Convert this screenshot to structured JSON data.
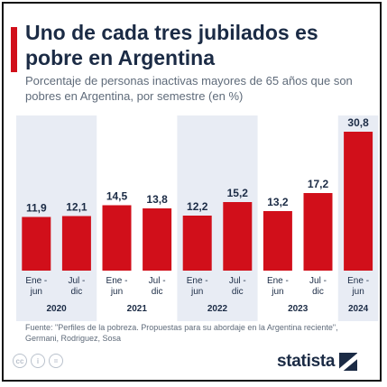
{
  "title": "Uno de cada tres jubilados es pobre en Argentina",
  "subtitle": "Porcentaje de personas inactivas mayores de 65 años que son pobres en Argentina, por semestre (en %)",
  "source": "Fuente: \"Perfiles de la pobreza. Propuestas para su abordaje en la Argentina reciente\", Germani, Rodriguez, Sosa",
  "brand": "statista",
  "icons": [
    "cc-icon",
    "person-icon",
    "equals-icon"
  ],
  "colors": {
    "bar": "#d10f1a",
    "year_band": "#e8ecf4",
    "title": "#1b2b45"
  },
  "chart_data": {
    "type": "bar",
    "categories": [
      "Ene-jun 2020",
      "Jul-dic 2020",
      "Ene-jun 2021",
      "Jul-dic 2021",
      "Ene-jun 2022",
      "Jul-dic 2022",
      "Ene-jun 2023",
      "Jul-dic 2023",
      "Ene-jun 2024"
    ],
    "semester_labels": [
      [
        "Ene -",
        "jun"
      ],
      [
        "Jul -",
        "dic"
      ],
      [
        "Ene -",
        "jun"
      ],
      [
        "Jul -",
        "dic"
      ],
      [
        "Ene -",
        "jun"
      ],
      [
        "Jul -",
        "dic"
      ],
      [
        "Ene -",
        "jun"
      ],
      [
        "Jul -",
        "dic"
      ],
      [
        "Ene -",
        "jun"
      ]
    ],
    "value_labels": [
      "11,9",
      "12,1",
      "14,5",
      "13,8",
      "12,2",
      "15,2",
      "13,2",
      "17,2",
      "30,8"
    ],
    "values": [
      11.9,
      12.1,
      14.5,
      13.8,
      12.2,
      15.2,
      13.2,
      17.2,
      30.8
    ],
    "years": [
      "2020",
      "2021",
      "2022",
      "2023",
      "2024"
    ],
    "ylim": [
      0,
      32
    ]
  }
}
